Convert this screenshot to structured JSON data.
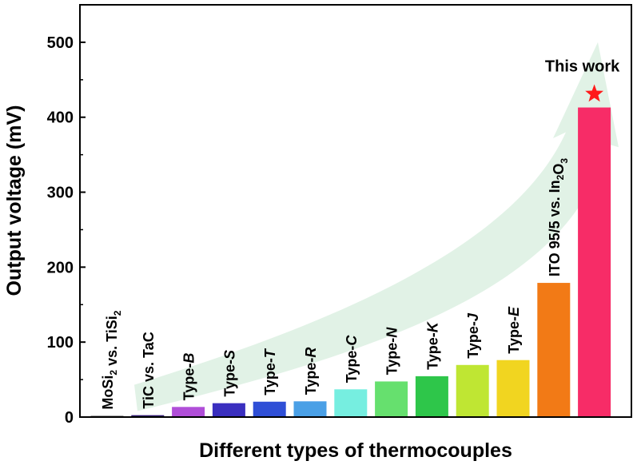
{
  "chart_data": {
    "type": "bar",
    "title": "",
    "xlabel": "Different types of thermocouples",
    "ylabel": "Output voltage (mV)",
    "ylim": [
      0,
      550
    ],
    "yticks": [
      0,
      100,
      200,
      300,
      400,
      500
    ],
    "grid": false,
    "legend": "none",
    "categories": [
      "MoSi2 vs. TiSi2",
      "TiC vs. TaC",
      "Type-B",
      "Type-S",
      "Type-T",
      "Type-R",
      "Type-C",
      "Type-N",
      "Type-K",
      "Type-J",
      "Type-E",
      "ITO 95/5 vs. In2O3",
      "This work"
    ],
    "values": [
      1.5,
      2.5,
      13.5,
      18.5,
      20.5,
      21,
      37,
      47.5,
      54.5,
      69.5,
      76,
      179,
      413
    ],
    "bar_colors": [
      "#1f1f1f",
      "#2e1670",
      "#b04ed8",
      "#3a2fbf",
      "#2f4fd6",
      "#4aa0e6",
      "#76eee0",
      "#66e06e",
      "#2ec64a",
      "#bfe633",
      "#f1d520",
      "#f27a16",
      "#f72c67"
    ],
    "highlight": {
      "label": "This work",
      "marker": "red-star",
      "color": "#ff1a1a"
    },
    "arrow_color": "#e1f2e6"
  }
}
